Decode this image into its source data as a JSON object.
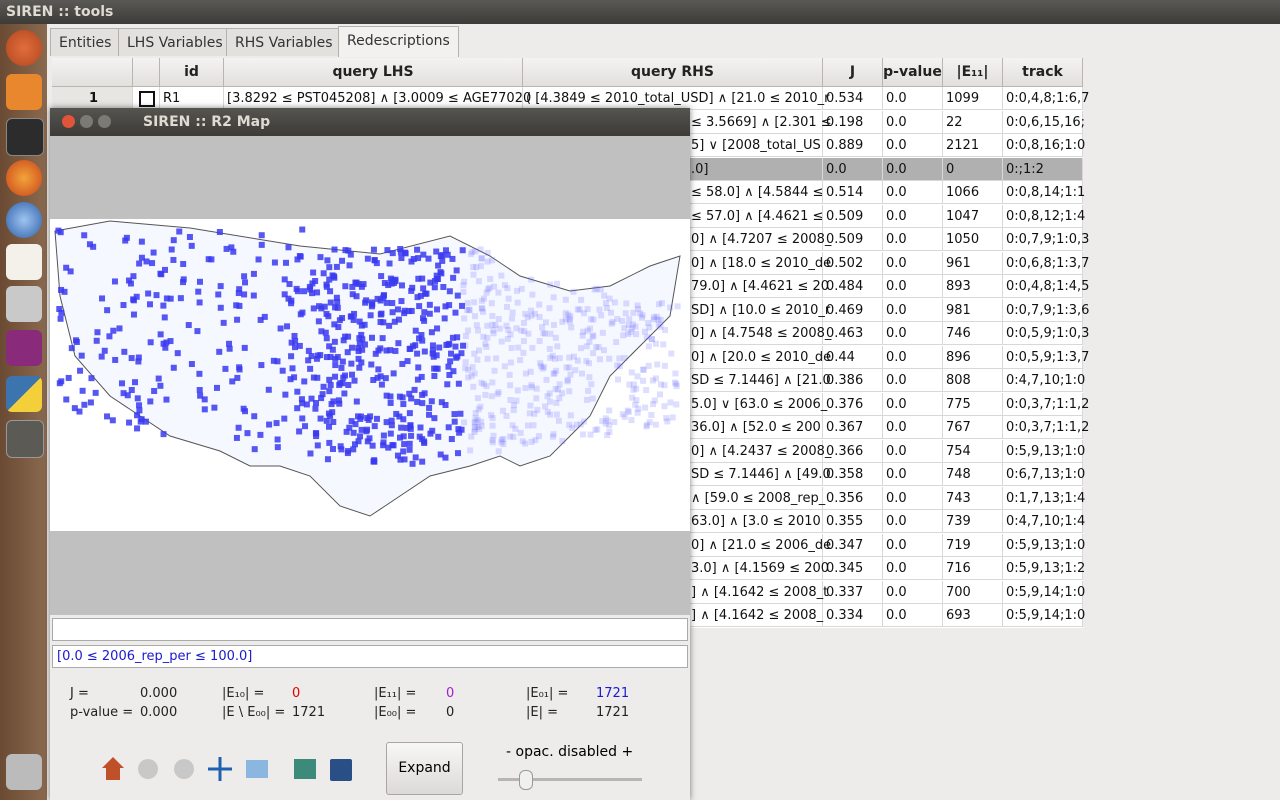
{
  "window": {
    "title": "SIREN :: tools"
  },
  "tabs": [
    "Entities",
    "LHS Variables",
    "RHS Variables",
    "Redescriptions"
  ],
  "table": {
    "columns": [
      "id",
      "query LHS",
      "query RHS",
      "J",
      "p-value",
      "|E₁₁|",
      "track"
    ],
    "rows": [
      {
        "num": "1",
        "id": "R1",
        "lhs": "[3.8292 ≤ PST045208] ∧  [3.0009 ≤ AGE77020",
        "rhs": "( [4.3849 ≤ 2010_total_USD] ∧  [21.0 ≤ 2010_r",
        "j": "0.534",
        "p": "0.0",
        "e11": "1099",
        "track": "0:0,4,8;1:6,7"
      },
      {
        "rhs": "≤ 3.5669] ∧  [2.301 ≤",
        "j": "0.198",
        "p": "0.0",
        "e11": "22",
        "track": "0:0,6,15,16;"
      },
      {
        "rhs": "5] ∨  [2008_total_US",
        "j": "0.889",
        "p": "0.0",
        "e11": "2121",
        "track": "0:0,8,16;1:0"
      },
      {
        "rhs": ".0]",
        "j": "0.0",
        "p": "0.0",
        "e11": "0",
        "track": "0:;1:2"
      },
      {
        "rhs": "≤ 58.0] ∧  [4.5844 ≤",
        "j": "0.514",
        "p": "0.0",
        "e11": "1066",
        "track": "0:0,8,14;1:1"
      },
      {
        "rhs": "≤ 57.0] ∧  [4.4621 ≤",
        "j": "0.509",
        "p": "0.0",
        "e11": "1047",
        "track": "0:0,8,12;1:4"
      },
      {
        "rhs": "0] ∧  [4.7207 ≤ 2008_",
        "j": "0.509",
        "p": "0.0",
        "e11": "1050",
        "track": "0:0,7,9;1:0,3"
      },
      {
        "rhs": "0] ∧  [18.0 ≤ 2010_de",
        "j": "0.502",
        "p": "0.0",
        "e11": "961",
        "track": "0:0,6,8;1:3,7"
      },
      {
        "rhs": "79.0] ∧  [4.4621 ≤ 20",
        "j": "0.484",
        "p": "0.0",
        "e11": "893",
        "track": "0:0,4,8;1:4,5"
      },
      {
        "rhs": "SD] ∧  [10.0 ≤ 2010_r",
        "j": "0.469",
        "p": "0.0",
        "e11": "981",
        "track": "0:0,7,9;1:3,6"
      },
      {
        "rhs": "0] ∧  [4.7548 ≤ 2008_",
        "j": "0.463",
        "p": "0.0",
        "e11": "746",
        "track": "0:0,5,9;1:0,3"
      },
      {
        "rhs": "0] ∧  [20.0 ≤ 2010_de",
        "j": "0.44",
        "p": "0.0",
        "e11": "896",
        "track": "0:0,5,9;1:3,7"
      },
      {
        "rhs": "SD ≤ 7.1446] ∧  [21.0",
        "j": "0.386",
        "p": "0.0",
        "e11": "808",
        "track": "0:4,7,10;1:0"
      },
      {
        "rhs": "5.0] ∨  [63.0 ≤ 2006_",
        "j": "0.376",
        "p": "0.0",
        "e11": "775",
        "track": "0:0,3,7;1:1,2"
      },
      {
        "rhs": "36.0] ∧  [52.0 ≤ 200",
        "j": "0.367",
        "p": "0.0",
        "e11": "767",
        "track": "0:0,3,7;1:1,2"
      },
      {
        "rhs": "0] ∧  [4.2437 ≤ 2008_",
        "j": "0.366",
        "p": "0.0",
        "e11": "754",
        "track": "0:5,9,13;1:0"
      },
      {
        "rhs": "SD ≤ 7.1446] ∧  [49.0",
        "j": "0.358",
        "p": "0.0",
        "e11": "748",
        "track": "0:6,7,13;1:0"
      },
      {
        "rhs": "∧  [59.0 ≤ 2008_rep_",
        "j": "0.356",
        "p": "0.0",
        "e11": "743",
        "track": "0:1,7,13;1:4"
      },
      {
        "rhs": "63.0] ∧  [3.0 ≤ 2010",
        "j": "0.355",
        "p": "0.0",
        "e11": "739",
        "track": "0:4,7,10;1:4"
      },
      {
        "rhs": "0] ∧  [21.0 ≤ 2006_de",
        "j": "0.347",
        "p": "0.0",
        "e11": "719",
        "track": "0:5,9,13;1:0"
      },
      {
        "rhs": "3.0] ∧  [4.1569 ≤ 200",
        "j": "0.345",
        "p": "0.0",
        "e11": "716",
        "track": "0:5,9,13;1:2"
      },
      {
        "rhs": "] ∧  [4.1642 ≤ 2008_t",
        "j": "0.337",
        "p": "0.0",
        "e11": "700",
        "track": "0:5,9,14;1:0"
      },
      {
        "rhs": "] ∧  [4.1642 ≤ 2008_",
        "j": "0.334",
        "p": "0.0",
        "e11": "693",
        "track": "0:5,9,14;1:0"
      }
    ]
  },
  "map_window": {
    "title": "SIREN :: R2 Map",
    "query": "[0.0 ≤ 2006_rep_per ≤ 100.0]",
    "stats": [
      {
        "label": "J =",
        "value": "0.000"
      },
      {
        "label": "p-value =",
        "value": "0.000"
      },
      {
        "label": "|E₁₀| =",
        "value": "0"
      },
      {
        "label": "|E \\ E₀₀| =",
        "value": "1721"
      },
      {
        "label": "|E₁₁| =",
        "value": "0"
      },
      {
        "label": "|E₀₀| =",
        "value": "0"
      },
      {
        "label": "|E₀₁| =",
        "value": "1721"
      },
      {
        "label": "|E| =",
        "value": "1721"
      }
    ],
    "expand": "Expand",
    "opacity": "-  opac. disabled  +"
  }
}
